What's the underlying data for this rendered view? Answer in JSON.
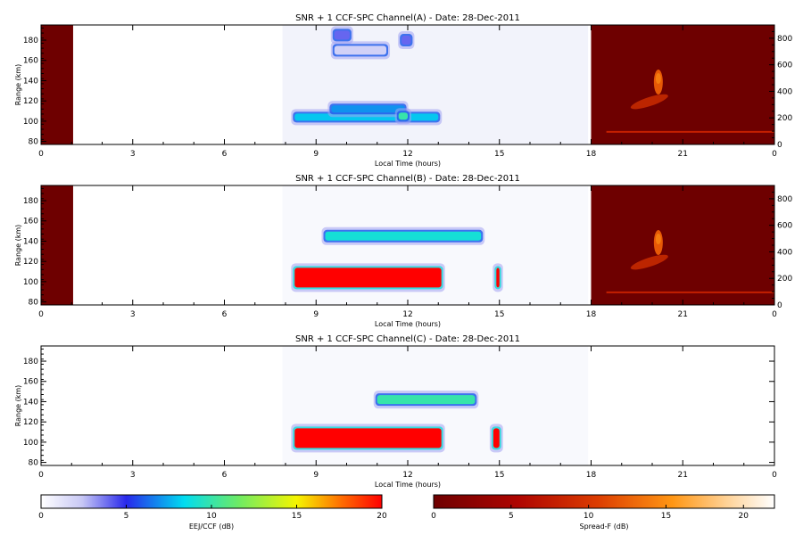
{
  "chart_data": [
    {
      "type": "heatmap",
      "title": "SNR + 1 CCF-SPC Channel(A) - Date: 28-Dec-2011",
      "xlabel": "Local Time (hours)",
      "ylabel": "Range (km)",
      "xlim": [
        0,
        24
      ],
      "ylim": [
        77,
        195
      ],
      "xticks": [
        "0",
        "3",
        "6",
        "9",
        "12",
        "15",
        "18",
        "21",
        "0"
      ],
      "yticks": [
        80,
        100,
        120,
        140,
        160,
        180
      ],
      "right_axis": {
        "ylim": [
          0,
          900
        ],
        "ticks": [
          0,
          200,
          400,
          600,
          800
        ]
      },
      "no_data_spans": [
        [
          0,
          1.05
        ]
      ],
      "spread_f_span": [
        18,
        24
      ],
      "features": [
        {
          "kind": "eej",
          "t_start": 8.3,
          "t_end": 13.0,
          "range_km": 104,
          "snr_db": 8
        },
        {
          "kind": "eej",
          "t_start": 9.5,
          "t_end": 11.9,
          "range_km": 112,
          "snr_db": 7
        },
        {
          "kind": "eej",
          "t_start": 11.7,
          "t_end": 12.0,
          "range_km": 105,
          "snr_db": 10
        },
        {
          "kind": "eej",
          "t_start": 9.6,
          "t_end": 10.1,
          "range_km": 185,
          "snr_db": 4
        },
        {
          "kind": "eej",
          "t_start": 11.8,
          "t_end": 12.1,
          "range_km": 180,
          "snr_db": 4
        },
        {
          "kind": "eej",
          "t_start": 9.6,
          "t_end": 11.3,
          "range_km": 170,
          "snr_db": 2
        },
        {
          "kind": "spread_f",
          "t": 20.2,
          "height_km": 470,
          "db": 14
        },
        {
          "kind": "spread_f",
          "t_start": 18.5,
          "t_end": 24,
          "height_km": 95,
          "db": 8
        }
      ]
    },
    {
      "type": "heatmap",
      "title": "SNR + 1 CCF-SPC Channel(B) - Date: 28-Dec-2011",
      "xlabel": "Local Time (hours)",
      "ylabel": "Range (km)",
      "xlim": [
        0,
        24
      ],
      "ylim": [
        77,
        195
      ],
      "xticks": [
        "0",
        "3",
        "6",
        "9",
        "12",
        "15",
        "18",
        "21",
        "0"
      ],
      "yticks": [
        80,
        100,
        120,
        140,
        160,
        180
      ],
      "right_axis": {
        "ylim": [
          0,
          900
        ],
        "ticks": [
          0,
          200,
          400,
          600,
          800
        ]
      },
      "no_data_spans": [
        [
          0,
          1.05
        ]
      ],
      "spread_f_span": [
        18,
        24
      ],
      "features": [
        {
          "kind": "eej",
          "t_start": 8.3,
          "t_end": 13.1,
          "range_km": 104,
          "snr_db": 20
        },
        {
          "kind": "eej",
          "t_start": 9.3,
          "t_end": 14.4,
          "range_km": 145,
          "snr_db": 9
        },
        {
          "kind": "eej",
          "t_start": 14.9,
          "t_end": 15.0,
          "range_km": 104,
          "snr_db": 20
        },
        {
          "kind": "spread_f",
          "t": 20.2,
          "height_km": 470,
          "db": 14
        },
        {
          "kind": "spread_f",
          "t_start": 18.5,
          "t_end": 24,
          "height_km": 95,
          "db": 8
        }
      ]
    },
    {
      "type": "heatmap",
      "title": "SNR + 1 CCF-SPC Channel(C) - Date: 28-Dec-2011",
      "xlabel": "Local Time (hours)",
      "ylabel": "Range (km)",
      "xlim": [
        0,
        24
      ],
      "ylim": [
        77,
        195
      ],
      "xticks": [
        "0",
        "3",
        "6",
        "9",
        "12",
        "15",
        "18",
        "21",
        "0"
      ],
      "yticks": [
        80,
        100,
        120,
        140,
        160,
        180
      ],
      "features": [
        {
          "kind": "eej",
          "t_start": 8.3,
          "t_end": 13.1,
          "range_km": 104,
          "snr_db": 20
        },
        {
          "kind": "eej",
          "t_start": 11.0,
          "t_end": 14.2,
          "range_km": 142,
          "snr_db": 10
        },
        {
          "kind": "eej",
          "t_start": 14.8,
          "t_end": 15.0,
          "range_km": 104,
          "snr_db": 20
        }
      ]
    }
  ],
  "colorbars": [
    {
      "label": "EEJ/CCF (dB)",
      "min": 0,
      "max": 20,
      "ticks": [
        0,
        5,
        10,
        15,
        20
      ],
      "colormap": "white-blue-cyan-green-yellow-red"
    },
    {
      "label": "Spread-F (dB)",
      "min": 0,
      "max": 22,
      "ticks": [
        0,
        5,
        10,
        15,
        20
      ],
      "colormap": "darkred-red-orange-white"
    }
  ]
}
